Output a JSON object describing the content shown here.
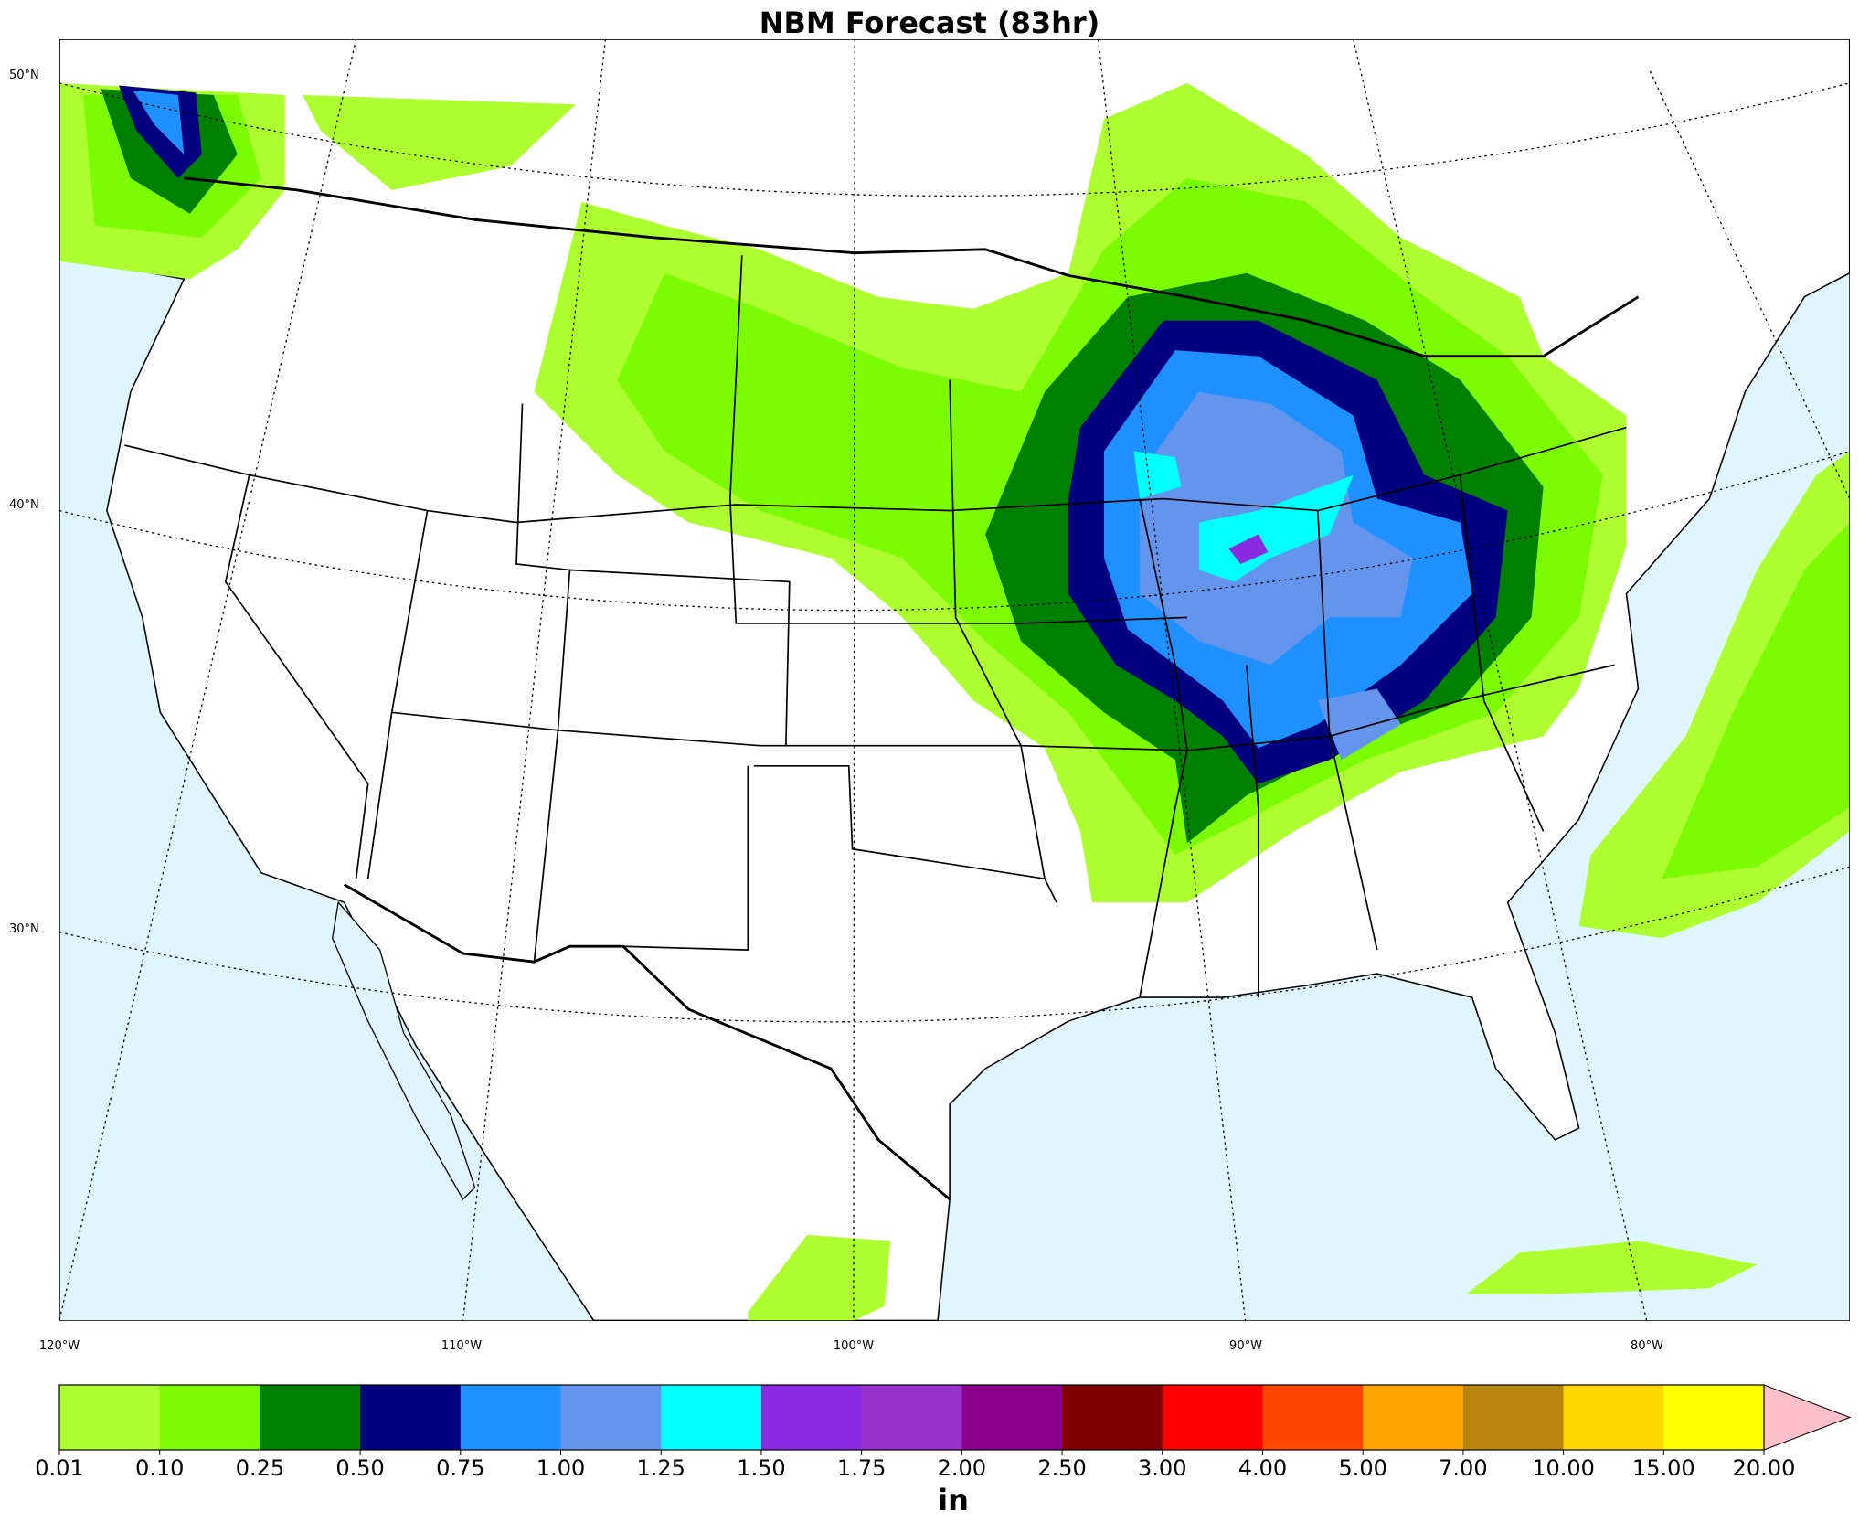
{
  "title": "NBM Forecast (83hr)",
  "latitude_labels": [
    "50°N",
    "40°N",
    "30°N"
  ],
  "longitude_labels": [
    "120°W",
    "110°W",
    "100°W",
    "90°W",
    "80°W"
  ],
  "colorbar": {
    "levels": [
      "0.01",
      "0.10",
      "0.25",
      "0.50",
      "0.75",
      "1.00",
      "1.25",
      "1.50",
      "1.75",
      "2.00",
      "2.50",
      "3.00",
      "4.00",
      "5.00",
      "7.00",
      "10.00",
      "15.00",
      "20.00"
    ],
    "colors": [
      "#adff2f",
      "#7cfc00",
      "#008000",
      "#000080",
      "#1e90ff",
      "#6495ed",
      "#00ffff",
      "#8a2be2",
      "#9932cc",
      "#8b008b",
      "#800000",
      "#ff0000",
      "#ff4500",
      "#ffa500",
      "#b8860b",
      "#ffd700",
      "#ffff00"
    ],
    "extend_color": "#ffc0cb",
    "unit": "in"
  }
}
